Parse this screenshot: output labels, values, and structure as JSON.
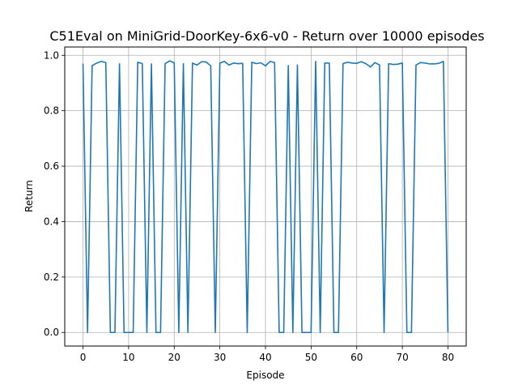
{
  "chart_data": {
    "type": "line",
    "title": "C51Eval on MiniGrid-DoorKey-6x6-v0 - Return over 10000 episodes",
    "xlabel": "Episode",
    "ylabel": "Return",
    "xlim": [
      -4,
      84
    ],
    "ylim": [
      -0.049,
      1.03
    ],
    "xticks": [
      0,
      10,
      20,
      30,
      40,
      50,
      60,
      70,
      80
    ],
    "yticks": [
      0.0,
      0.2,
      0.4,
      0.6,
      0.8,
      1.0
    ],
    "xtick_labels": [
      "0",
      "10",
      "20",
      "30",
      "40",
      "50",
      "60",
      "70",
      "80"
    ],
    "ytick_labels": [
      "0.0",
      "0.2",
      "0.4",
      "0.6",
      "0.8",
      "1.0"
    ],
    "grid": true,
    "line_color": "#1f77b4",
    "series": [
      {
        "x": [
          0,
          1,
          2,
          3,
          4,
          5,
          6,
          7,
          8,
          9,
          10,
          11,
          12,
          13,
          14,
          15,
          16,
          17,
          18,
          19,
          20,
          21,
          22,
          23,
          24,
          25,
          26,
          27,
          28,
          29,
          30,
          31,
          32,
          33,
          34,
          35,
          36,
          37,
          38,
          39,
          40,
          41,
          42,
          43,
          44,
          45,
          46,
          47,
          48,
          49,
          50,
          51,
          52,
          53,
          54,
          55,
          56,
          57,
          58,
          59,
          60,
          61,
          62,
          63,
          64,
          65,
          66,
          67,
          68,
          69,
          70,
          71,
          72,
          73,
          74,
          75,
          76,
          77,
          78,
          79,
          80
        ],
        "y": [
          0.97,
          0.0,
          0.963,
          0.972,
          0.978,
          0.974,
          0.0,
          0.0,
          0.969,
          0.0,
          0.0,
          0.0,
          0.975,
          0.97,
          0.0,
          0.969,
          0.0,
          0.0,
          0.97,
          0.98,
          0.973,
          0.0,
          0.97,
          0.0,
          0.972,
          0.965,
          0.977,
          0.976,
          0.962,
          0.0,
          0.972,
          0.978,
          0.965,
          0.972,
          0.97,
          0.971,
          0.0,
          0.975,
          0.97,
          0.973,
          0.962,
          0.978,
          0.974,
          0.0,
          0.0,
          0.963,
          0.0,
          0.965,
          0.0,
          0.0,
          0.0,
          0.978,
          0.0,
          0.972,
          0.972,
          0.0,
          0.0,
          0.97,
          0.975,
          0.972,
          0.971,
          0.977,
          0.97,
          0.958,
          0.974,
          0.965,
          0.0,
          0.97,
          0.967,
          0.968,
          0.972,
          0.0,
          0.0,
          0.965,
          0.974,
          0.972,
          0.969,
          0.969,
          0.971,
          0.978,
          0.0
        ]
      }
    ]
  }
}
